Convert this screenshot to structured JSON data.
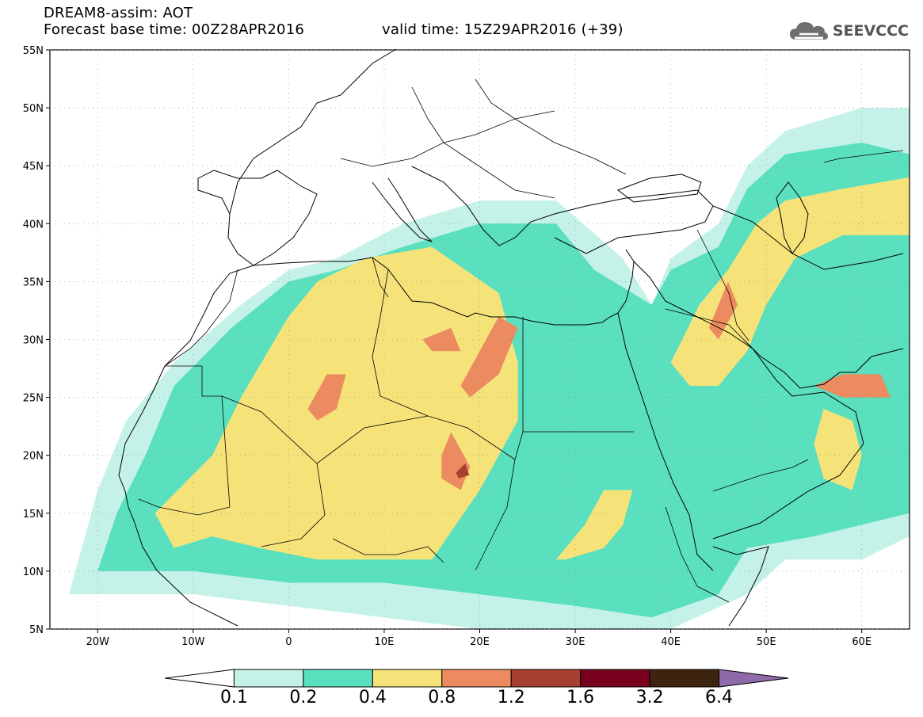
{
  "header": {
    "title": "DREAM8-assim: AOT",
    "base_time": "Forecast base time: 00Z28APR2016",
    "valid_time": "valid time: 15Z29APR2016 (+39)",
    "brand": "SEEVCCC",
    "brand_icon": "cloud-icon"
  },
  "map": {
    "lon_range": [
      -25,
      65
    ],
    "lat_range": [
      5,
      55
    ],
    "lat_ticks": [
      {
        "value": 55,
        "label": "55N"
      },
      {
        "value": 50,
        "label": "50N"
      },
      {
        "value": 45,
        "label": "45N"
      },
      {
        "value": 40,
        "label": "40N"
      },
      {
        "value": 35,
        "label": "35N"
      },
      {
        "value": 30,
        "label": "30N"
      },
      {
        "value": 25,
        "label": "25N"
      },
      {
        "value": 20,
        "label": "20N"
      },
      {
        "value": 15,
        "label": "15N"
      },
      {
        "value": 10,
        "label": "10N"
      },
      {
        "value": 5,
        "label": "5N"
      }
    ],
    "lon_ticks": [
      {
        "value": -20,
        "label": "20W"
      },
      {
        "value": -10,
        "label": "10W"
      },
      {
        "value": 0,
        "label": "0"
      },
      {
        "value": 10,
        "label": "10E"
      },
      {
        "value": 20,
        "label": "20E"
      },
      {
        "value": 30,
        "label": "30E"
      },
      {
        "value": 40,
        "label": "40E"
      },
      {
        "value": 50,
        "label": "50E"
      },
      {
        "value": 60,
        "label": "60E"
      }
    ]
  },
  "colorbar": {
    "colors": [
      "#ffffff",
      "#c5f2e8",
      "#5ae0bf",
      "#f5e37a",
      "#ec8b5f",
      "#a8402f",
      "#7a0020",
      "#3d2410",
      "#8f6aa8"
    ],
    "labels": [
      "0.1",
      "0.2",
      "0.4",
      "0.8",
      "1.2",
      "1.6",
      "3.2",
      "6.4"
    ]
  },
  "aot_fields": [
    {
      "level": 1,
      "color": "#c5f2e8",
      "points": [
        [
          -23,
          8
        ],
        [
          -20,
          17
        ],
        [
          -17,
          23
        ],
        [
          -12,
          28
        ],
        [
          -5,
          33
        ],
        [
          0,
          36
        ],
        [
          5,
          37
        ],
        [
          12,
          40
        ],
        [
          20,
          42
        ],
        [
          28,
          42
        ],
        [
          35,
          37
        ],
        [
          38,
          33
        ],
        [
          40,
          37
        ],
        [
          45,
          40
        ],
        [
          48,
          45
        ],
        [
          52,
          48
        ],
        [
          60,
          50
        ],
        [
          65,
          50
        ],
        [
          65,
          13
        ],
        [
          60,
          11
        ],
        [
          52,
          11
        ],
        [
          48,
          8
        ],
        [
          40,
          5
        ],
        [
          30,
          5
        ],
        [
          20,
          5
        ],
        [
          10,
          6
        ],
        [
          0,
          7
        ],
        [
          -10,
          8
        ],
        [
          -18,
          8
        ]
      ]
    },
    {
      "level": 2,
      "color": "#5ae0bf",
      "points": [
        [
          -20,
          10
        ],
        [
          -18,
          15
        ],
        [
          -15,
          20
        ],
        [
          -12,
          26
        ],
        [
          -6,
          31
        ],
        [
          0,
          35
        ],
        [
          5,
          36
        ],
        [
          12,
          38
        ],
        [
          20,
          40
        ],
        [
          28,
          40
        ],
        [
          32,
          36
        ],
        [
          38,
          33
        ],
        [
          40,
          36
        ],
        [
          45,
          38
        ],
        [
          48,
          43
        ],
        [
          52,
          46
        ],
        [
          60,
          47
        ],
        [
          65,
          46
        ],
        [
          65,
          15
        ],
        [
          55,
          13
        ],
        [
          48,
          12
        ],
        [
          45,
          8
        ],
        [
          38,
          6
        ],
        [
          30,
          7
        ],
        [
          20,
          8
        ],
        [
          10,
          9
        ],
        [
          0,
          9
        ],
        [
          -10,
          10
        ],
        [
          -16,
          10
        ]
      ]
    },
    {
      "level": 3,
      "color": "#f5e37a",
      "points": [
        [
          -14,
          15
        ],
        [
          -8,
          20
        ],
        [
          -5,
          25
        ],
        [
          0,
          32
        ],
        [
          3,
          35
        ],
        [
          8,
          37
        ],
        [
          15,
          38
        ],
        [
          22,
          34
        ],
        [
          24,
          28
        ],
        [
          24,
          23
        ],
        [
          20,
          17
        ],
        [
          15,
          11
        ],
        [
          10,
          11
        ],
        [
          3,
          11
        ],
        [
          -3,
          12
        ],
        [
          -8,
          13
        ],
        [
          -12,
          12
        ]
      ]
    },
    {
      "level": 3,
      "color": "#f5e37a",
      "points": [
        [
          40,
          28
        ],
        [
          43,
          33
        ],
        [
          46,
          36
        ],
        [
          49,
          40
        ],
        [
          52,
          42
        ],
        [
          58,
          43
        ],
        [
          65,
          44
        ],
        [
          65,
          39
        ],
        [
          58,
          39
        ],
        [
          53,
          37
        ],
        [
          50,
          33
        ],
        [
          48,
          29
        ],
        [
          45,
          26
        ],
        [
          42,
          26
        ]
      ]
    },
    {
      "level": 3,
      "color": "#f5e37a",
      "points": [
        [
          56,
          24
        ],
        [
          59,
          23
        ],
        [
          60,
          20
        ],
        [
          59,
          17
        ],
        [
          56,
          18
        ],
        [
          55,
          21
        ]
      ]
    },
    {
      "level": 3,
      "color": "#f5e37a",
      "points": [
        [
          28,
          11
        ],
        [
          31,
          14
        ],
        [
          33,
          17
        ],
        [
          36,
          17
        ],
        [
          35,
          14
        ],
        [
          33,
          12
        ],
        [
          29,
          11
        ]
      ]
    },
    {
      "level": 4,
      "color": "#ec8b5f",
      "points": [
        [
          2,
          24
        ],
        [
          4,
          27
        ],
        [
          6,
          27
        ],
        [
          5,
          24
        ],
        [
          3,
          23
        ]
      ]
    },
    {
      "level": 4,
      "color": "#ec8b5f",
      "points": [
        [
          14,
          30
        ],
        [
          17,
          31
        ],
        [
          18,
          29
        ],
        [
          15,
          29
        ]
      ]
    },
    {
      "level": 4,
      "color": "#ec8b5f",
      "points": [
        [
          18,
          26
        ],
        [
          20,
          29
        ],
        [
          22,
          32
        ],
        [
          24,
          31
        ],
        [
          22,
          27
        ],
        [
          19,
          25
        ]
      ]
    },
    {
      "level": 4,
      "color": "#ec8b5f",
      "points": [
        [
          16,
          20
        ],
        [
          17,
          22
        ],
        [
          19,
          19
        ],
        [
          18,
          17
        ],
        [
          16,
          18
        ]
      ]
    },
    {
      "level": 4,
      "color": "#ec8b5f",
      "points": [
        [
          44,
          31
        ],
        [
          46,
          35
        ],
        [
          47,
          33
        ],
        [
          45,
          30
        ]
      ]
    },
    {
      "level": 4,
      "color": "#ec8b5f",
      "points": [
        [
          55,
          26
        ],
        [
          58,
          27
        ],
        [
          62,
          27
        ],
        [
          63,
          25
        ],
        [
          58,
          25
        ]
      ]
    },
    {
      "level": 5,
      "color": "#a8402f",
      "points": [
        [
          17.5,
          18.5
        ],
        [
          18.5,
          19.3
        ],
        [
          18.9,
          18.3
        ],
        [
          17.8,
          18
        ]
      ]
    }
  ]
}
